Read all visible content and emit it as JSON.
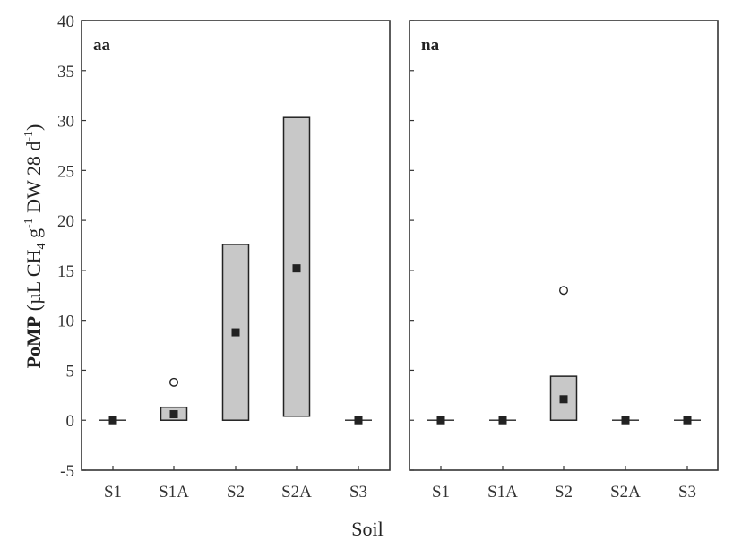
{
  "chart_data": {
    "type": "box",
    "xlabel": "Soil",
    "ylabel": "PoMP (µL CH4 g-1 DW 28 d-1)",
    "ylabel_parts": {
      "bold": "PoMP",
      "rest": " (µL CH",
      "sub": "4",
      "g": " g",
      "sup1": "-1",
      "dw": " DW 28 d",
      "sup2": "-1",
      "close": ")"
    },
    "ylim": [
      -5,
      40
    ],
    "yticks": [
      -5,
      0,
      5,
      10,
      15,
      20,
      25,
      30,
      35,
      40
    ],
    "categories": [
      "S1",
      "S1A",
      "S2",
      "S2A",
      "S3"
    ],
    "panels": [
      {
        "label": "aa",
        "boxes": [
          {
            "category": "S1",
            "low": 0,
            "high": 0,
            "median": 0,
            "outliers": []
          },
          {
            "category": "S1A",
            "low": 0,
            "high": 1.3,
            "median": 0.6,
            "outliers": [
              3.8
            ]
          },
          {
            "category": "S2",
            "low": 0,
            "high": 17.6,
            "median": 8.8,
            "outliers": []
          },
          {
            "category": "S2A",
            "low": 0.4,
            "high": 30.3,
            "median": 15.2,
            "outliers": []
          },
          {
            "category": "S3",
            "low": 0,
            "high": 0,
            "median": 0,
            "outliers": []
          }
        ]
      },
      {
        "label": "na",
        "boxes": [
          {
            "category": "S1",
            "low": 0,
            "high": 0,
            "median": 0,
            "outliers": []
          },
          {
            "category": "S1A",
            "low": 0,
            "high": 0,
            "median": 0,
            "outliers": []
          },
          {
            "category": "S2",
            "low": 0,
            "high": 4.4,
            "median": 2.1,
            "outliers": [
              13.0
            ]
          },
          {
            "category": "S2A",
            "low": 0,
            "high": 0,
            "median": 0,
            "outliers": []
          },
          {
            "category": "S3",
            "low": 0,
            "high": 0,
            "median": 0,
            "outliers": []
          }
        ]
      }
    ],
    "colors": {
      "box_fill": "#c8c8c8",
      "stroke": "#222222",
      "median": "#222222"
    },
    "grid": false,
    "legend": null
  }
}
